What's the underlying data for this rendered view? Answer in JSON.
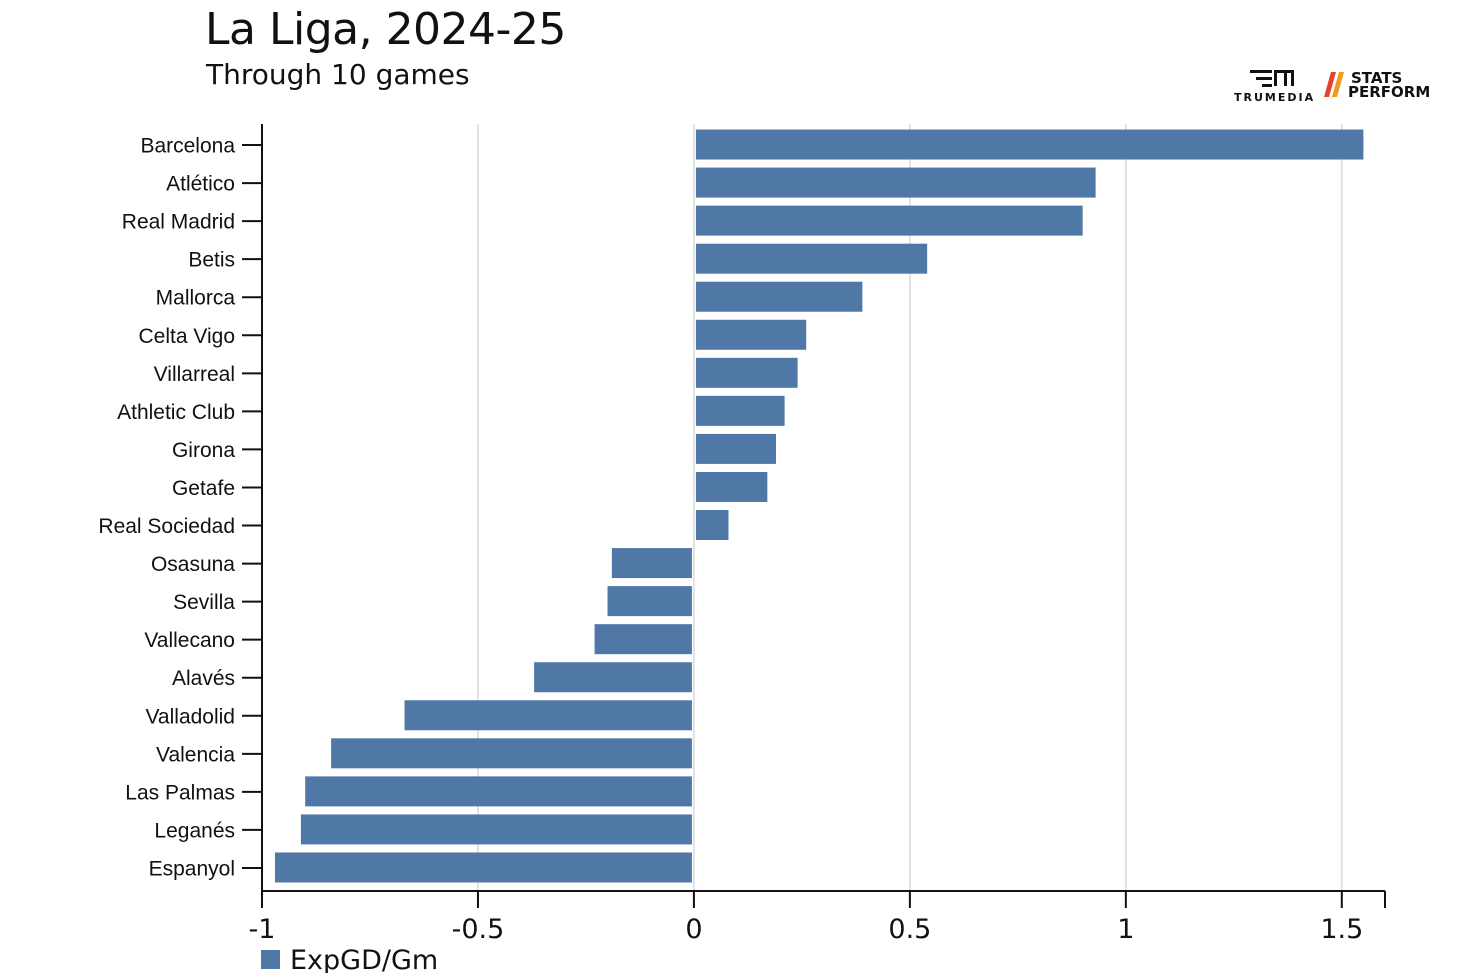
{
  "header": {
    "title": "La Liga, 2024-25",
    "subtitle": "Through 10 games"
  },
  "logos": {
    "trumedia": {
      "icon": "trumedia-logo-icon",
      "text": "TRUMEDIA"
    },
    "statsperform": {
      "icon": "stats-perform-slash-icon",
      "line1": "STATS",
      "line2": "PERFORM",
      "accent_colors": [
        "#e8412c",
        "#f39a1e"
      ]
    }
  },
  "colors": {
    "bar": "#4f78a6",
    "grid": "#d9d9d9",
    "axis": "#111111"
  },
  "chart_data": {
    "type": "bar",
    "orientation": "horizontal",
    "title": "La Liga, 2024-25",
    "subtitle": "Through 10 games",
    "categories": [
      "Barcelona",
      "Atlético",
      "Real Madrid",
      "Betis",
      "Mallorca",
      "Celta Vigo",
      "Villarreal",
      "Athletic Club",
      "Girona",
      "Getafe",
      "Real Sociedad",
      "Osasuna",
      "Sevilla",
      "Vallecano",
      "Alavés",
      "Valladolid",
      "Valencia",
      "Las Palmas",
      "Leganés",
      "Espanyol"
    ],
    "series": [
      {
        "name": "ExpGD/Gm",
        "values": [
          1.55,
          0.93,
          0.9,
          0.54,
          0.39,
          0.26,
          0.24,
          0.21,
          0.19,
          0.17,
          0.08,
          -0.19,
          -0.2,
          -0.23,
          -0.37,
          -0.67,
          -0.84,
          -0.9,
          -0.91,
          -0.97
        ]
      }
    ],
    "xlim": [
      -1,
      1.6
    ],
    "xticks": [
      -1,
      -0.5,
      0,
      0.5,
      1,
      1.5
    ],
    "xtick_labels": [
      "-1",
      "-0.5",
      "0",
      "0.5",
      "1",
      "1.5"
    ],
    "grid": true,
    "legend": {
      "position": "bottom-left",
      "label": "ExpGD/Gm"
    }
  }
}
